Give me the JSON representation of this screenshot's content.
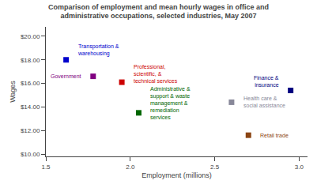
{
  "chart_data": {
    "type": "scatter",
    "title": "Comparison of employment and mean hourly wages in office and\nadministrative occupations, selected industries, May 2007",
    "xlabel": "Employment (millions)",
    "ylabel": "Wages",
    "x": [
      1.62,
      1.78,
      1.95,
      2.05,
      2.6,
      2.7,
      2.95
    ],
    "values": [
      18.0,
      16.6,
      16.1,
      13.5,
      14.4,
      11.6,
      15.4
    ],
    "colors": [
      "#0000CC",
      "#800080",
      "#CC0000",
      "#006600",
      "#888899",
      "#8B4513",
      "#000080"
    ],
    "marker": "square",
    "xlim": [
      1.5,
      3.05
    ],
    "ylim": [
      9.8,
      20.8
    ],
    "xticks": [
      1.5,
      {
        "value": 2.0,
        "label": "2.0"
      },
      2.5,
      {
        "value": 3.0,
        "label": "3.0"
      }
    ],
    "yticks": [
      {
        "value": 10.0,
        "label": "$10.00"
      },
      {
        "value": 12.0,
        "label": "$12.00"
      },
      {
        "value": 14.0,
        "label": "$14.00"
      },
      {
        "value": 16.0,
        "label": "$16.00"
      },
      {
        "value": 18.0,
        "label": "$18.00"
      },
      {
        "value": 20.0,
        "label": "$20.00"
      }
    ],
    "grid": false,
    "annotations": [
      {
        "text": "Transportation &\nwarehousing",
        "x": 1.68,
        "y": 18.8,
        "color": "#0000CC"
      },
      {
        "text": "Government",
        "x": 1.72,
        "y": 16.6,
        "color": "#800080"
      },
      {
        "text": "Professional,\nscientific, &\ntechnical services",
        "x": 2.01,
        "y": 16.8,
        "color": "#CC0000"
      },
      {
        "text": "Administrative &\nsupport & waste\nmanagement &\nremediation\nservices",
        "x": 2.11,
        "y": 14.3,
        "color": "#006600"
      },
      {
        "text": "Health care &\nsocial assistance",
        "x": 2.66,
        "y": 14.4,
        "color": "#888899"
      },
      {
        "text": "Retail trade",
        "x": 2.76,
        "y": 11.6,
        "color": "#8B4513"
      },
      {
        "text": "Finance &\ninsurance",
        "x": 2.89,
        "y": 16.2,
        "color": "#000080"
      }
    ]
  }
}
